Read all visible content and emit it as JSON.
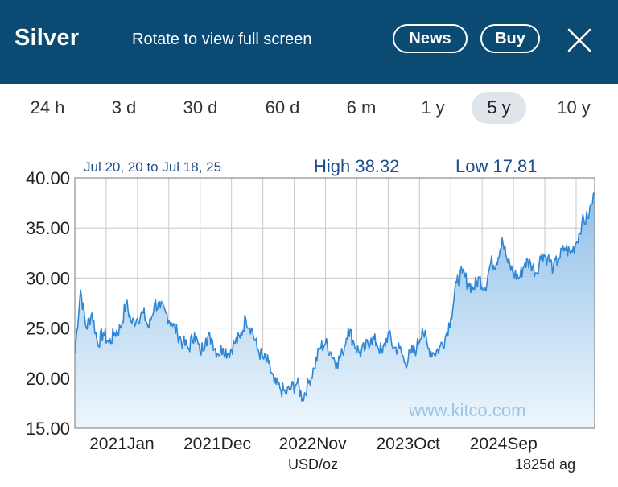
{
  "header": {
    "title": "Silver",
    "rotate_message": "Rotate to view full screen",
    "news_label": "News",
    "buy_label": "Buy",
    "close_icon": "close-icon",
    "background_color": "#0b4a72"
  },
  "tabs": [
    {
      "label": "24 h",
      "active": false
    },
    {
      "label": "3 d",
      "active": false
    },
    {
      "label": "30 d",
      "active": false
    },
    {
      "label": "60 d",
      "active": false
    },
    {
      "label": "6 m",
      "active": false
    },
    {
      "label": "1 y",
      "active": false
    },
    {
      "label": "5 y",
      "active": true
    },
    {
      "label": "10 y",
      "active": false
    }
  ],
  "chart_data": {
    "type": "area",
    "range_label": "Jul 20, 20 to Jul 18, 25",
    "high_label": "High 38.32",
    "low_label": "Low 17.81",
    "watermark": "www.kitco.com",
    "unit_label": "USD/oz",
    "span_label": "1825d ag",
    "ylim": [
      15,
      40
    ],
    "y_ticks": [
      "15.00",
      "20.00",
      "25.00",
      "30.00",
      "35.00",
      "40.00"
    ],
    "y_tick_values": [
      15,
      20,
      25,
      30,
      35,
      40
    ],
    "x_tick_labels": [
      "2021Jan",
      "2021Dec",
      "2022Nov",
      "2023Oct",
      "2024Sep"
    ],
    "x_tick_days": [
      165,
      500,
      835,
      1170,
      1505
    ],
    "x_range_days": [
      0,
      1825
    ],
    "grid": true,
    "line_color": "#2f86d6",
    "fill_top_color": "#8fc0e8",
    "fill_bottom_color": "#eef6fc",
    "series": [
      {
        "x": [
          0,
          20,
          40,
          60,
          80,
          100,
          120,
          140,
          160,
          180,
          200,
          220,
          240,
          260,
          280,
          300,
          320,
          340,
          360,
          380,
          400,
          420,
          440,
          460,
          480,
          500,
          520,
          540,
          560,
          580,
          600,
          620,
          640,
          660,
          680,
          700,
          720,
          740,
          760,
          780,
          800,
          820,
          840,
          860,
          880,
          900,
          920,
          940,
          960,
          980,
          1000,
          1020,
          1040,
          1060,
          1080,
          1100,
          1120,
          1140,
          1160,
          1180,
          1200,
          1220,
          1240,
          1260,
          1280,
          1300,
          1320,
          1340,
          1360,
          1380,
          1400,
          1420,
          1440,
          1460,
          1480,
          1500,
          1520,
          1540,
          1560,
          1580,
          1600,
          1620,
          1640,
          1660,
          1680,
          1700,
          1720,
          1740,
          1760,
          1780,
          1800,
          1825
        ],
        "values": [
          22.5,
          28.8,
          25.0,
          26.5,
          23.5,
          24.5,
          23.5,
          24.5,
          25.0,
          27.5,
          25.5,
          26.0,
          26.5,
          25.0,
          27.5,
          27.0,
          26.5,
          25.5,
          24.5,
          23.5,
          23.0,
          24.5,
          22.5,
          24.0,
          24.0,
          22.5,
          23.0,
          22.5,
          23.5,
          24.0,
          26.0,
          25.0,
          23.0,
          22.0,
          21.5,
          19.5,
          19.0,
          18.5,
          19.0,
          19.5,
          18.0,
          19.5,
          21.0,
          23.0,
          23.5,
          22.5,
          21.5,
          22.5,
          25.0,
          23.5,
          22.5,
          23.0,
          24.0,
          23.5,
          22.5,
          24.5,
          23.0,
          23.0,
          21.5,
          22.5,
          23.0,
          25.0,
          23.0,
          22.5,
          23.0,
          24.0,
          26.0,
          29.5,
          30.5,
          29.5,
          29.0,
          30.0,
          29.0,
          31.5,
          31.5,
          34.0,
          31.5,
          30.5,
          30.0,
          31.5,
          31.5,
          30.5,
          32.5,
          32.0,
          31.0,
          32.0,
          33.0,
          32.5,
          33.5,
          35.5,
          36.0,
          38.3
        ]
      }
    ]
  }
}
